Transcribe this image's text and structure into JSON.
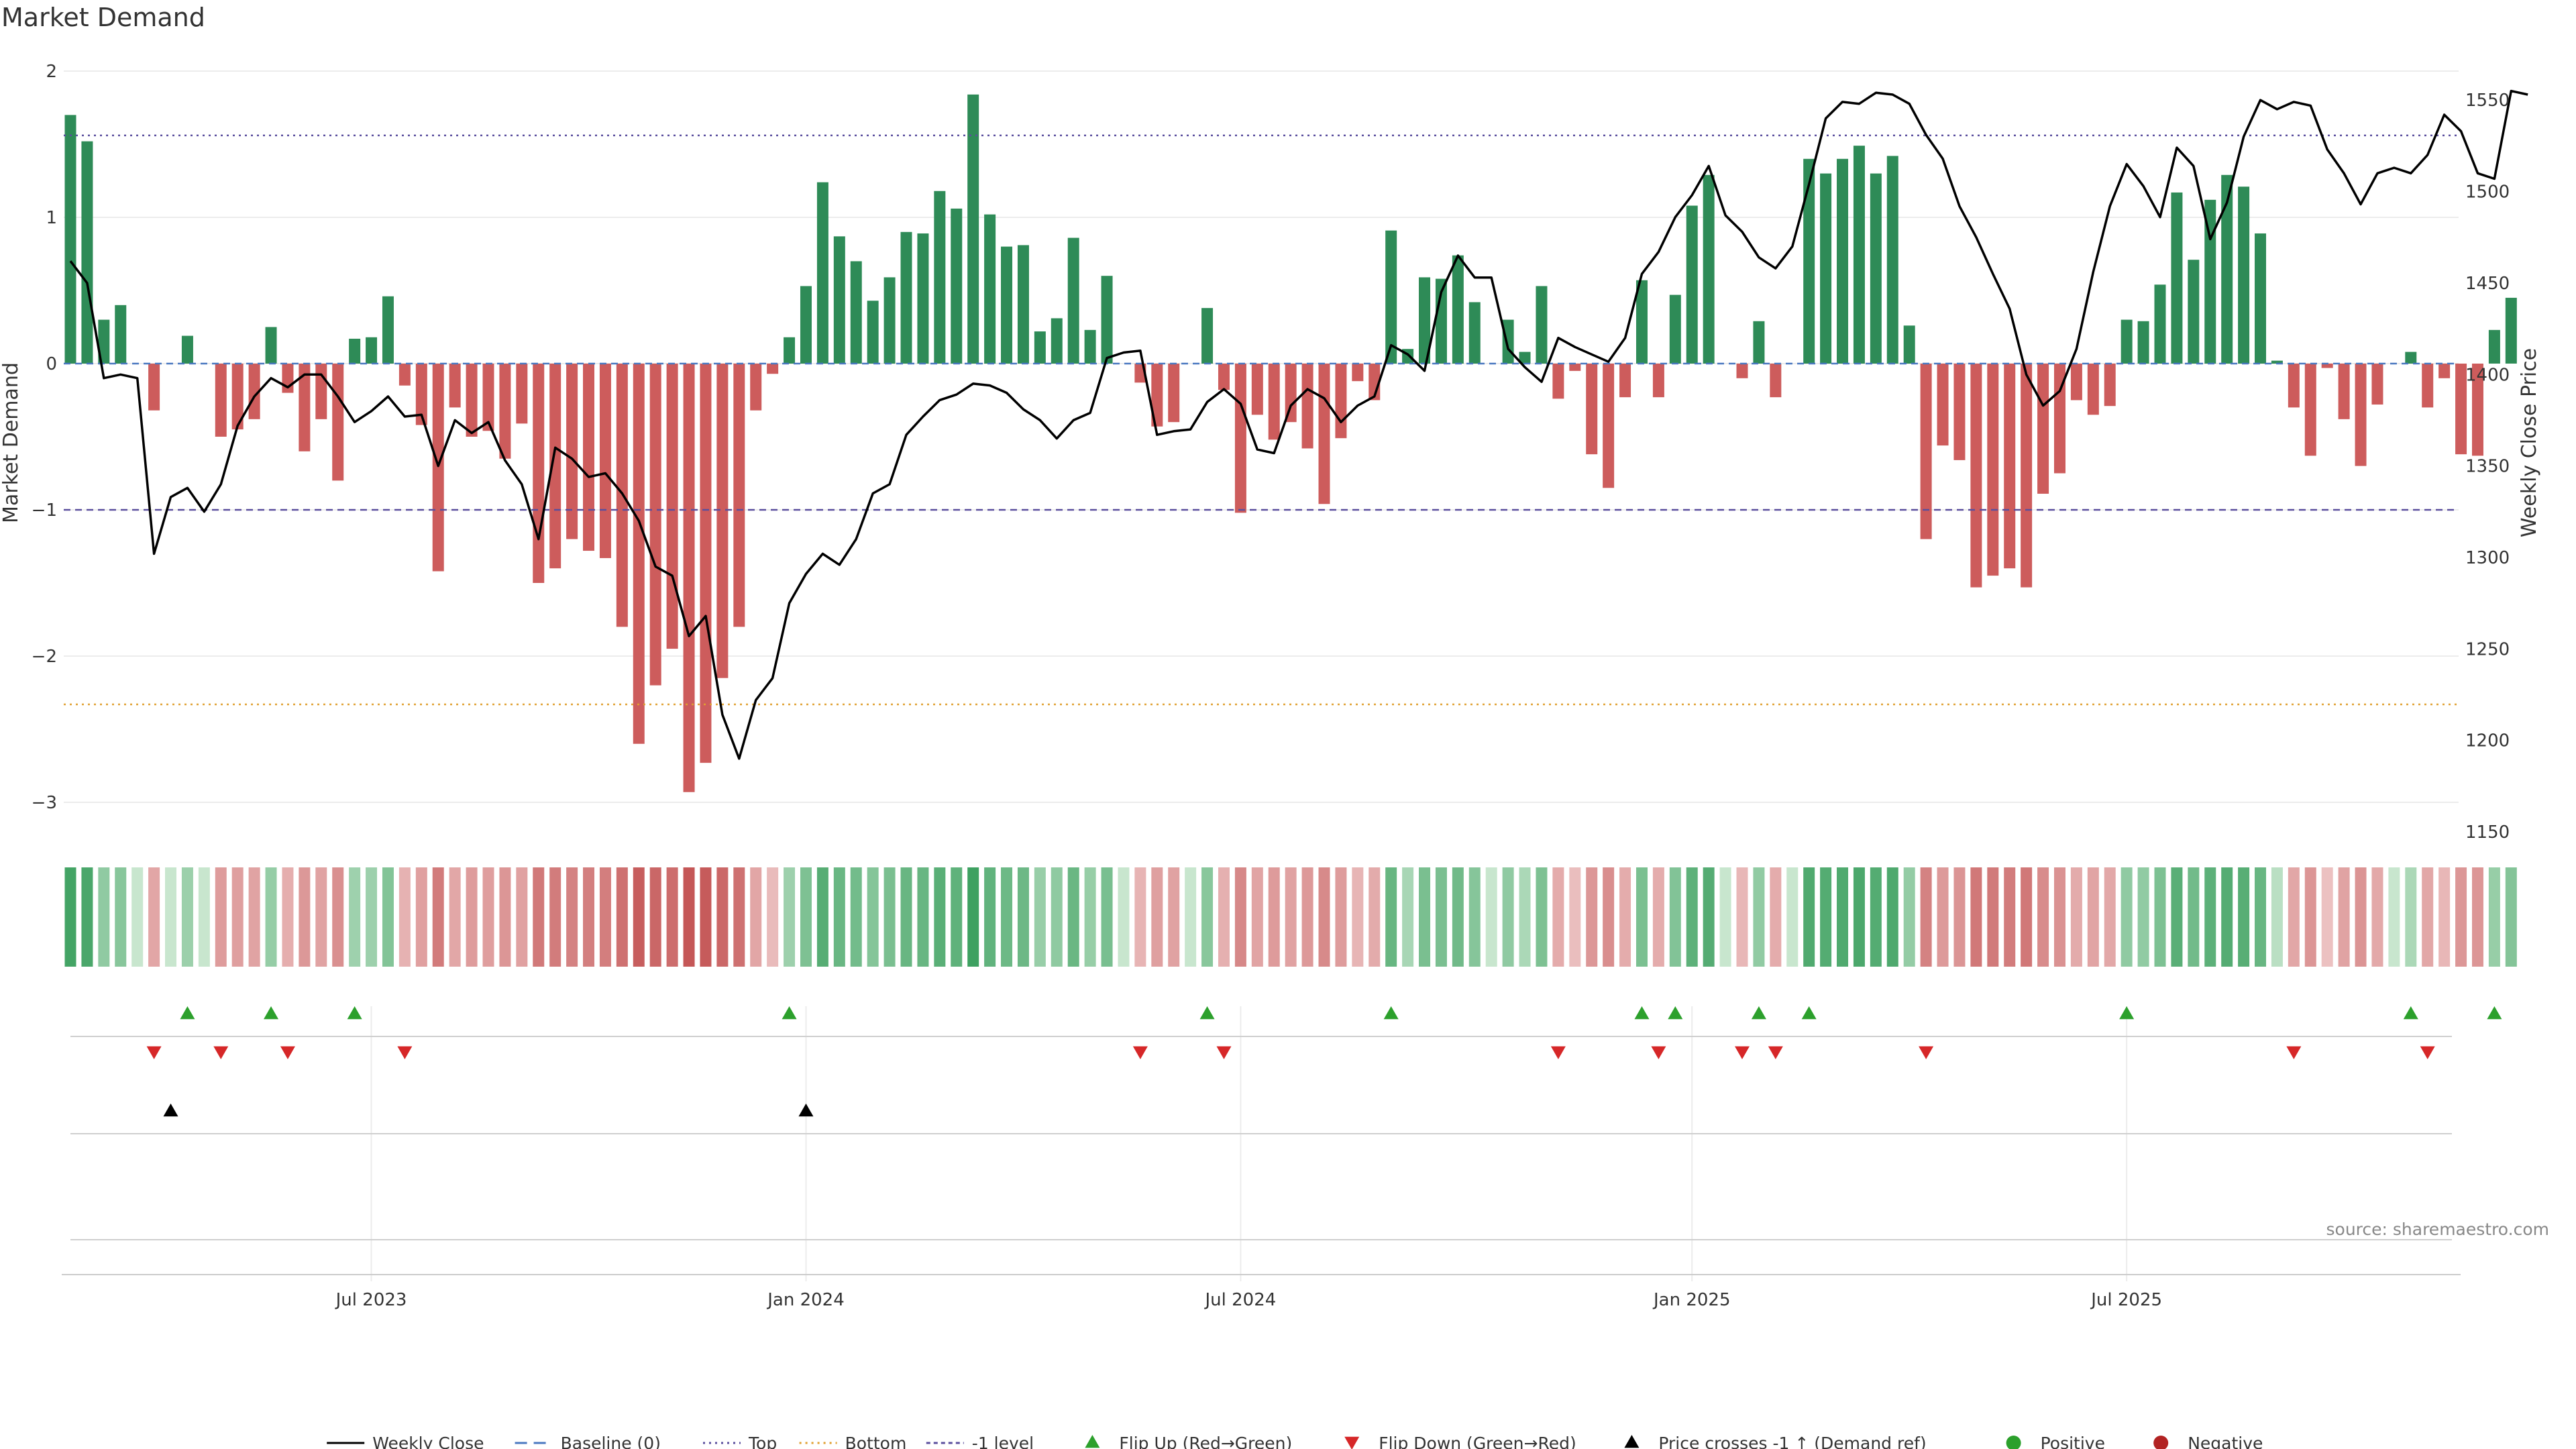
{
  "source_note": "source: sharemaestro.com",
  "chart_data": {
    "type": "bar",
    "title": "Market Demand",
    "ylabel_left": "Market Demand",
    "ylabel_right": "Weekly Close Price",
    "ylim_left": [
      -3.0,
      2.0
    ],
    "left_ticks": [
      2,
      1,
      0,
      -1,
      -2,
      -3
    ],
    "left_tick_labels": [
      "2",
      "1",
      "0",
      "−1",
      "−2",
      "−3"
    ],
    "ylim_right": [
      1150,
      1560
    ],
    "right_ticks": [
      1550,
      1500,
      1450,
      1400,
      1350,
      1300,
      1250,
      1200,
      1150
    ],
    "start_date": "2023-02-27",
    "x_tick_dates": [
      "2023-07-03",
      "2024-01-01",
      "2024-07-01",
      "2025-01-06",
      "2025-07-07"
    ],
    "x_tick_labels": [
      "Jul 2023",
      "Jan 2024",
      "Jul 2024",
      "Jan 2025",
      "Jul 2025"
    ],
    "reference_lines": [
      {
        "name": "Top",
        "value": 1.56,
        "color": "#5b4f9e",
        "style": "dotted"
      },
      {
        "name": "Bottom",
        "value": -2.33,
        "color": "#e0a030",
        "style": "dotted"
      },
      {
        "name": "-1 level",
        "value": -1.0,
        "color": "#5b4f9e",
        "style": "dashed"
      },
      {
        "name": "Baseline (0)",
        "value": 0.0,
        "color": "#4a78c0",
        "style": "dashed"
      }
    ],
    "colors": {
      "positive": "#2e8b57",
      "negative": "#cd5c5c",
      "close": "#000000",
      "flip_up": "#2ca02c",
      "flip_down": "#d62728",
      "cross": "#000000"
    },
    "demand": [
      1.7,
      1.52,
      0.3,
      0.4,
      0.0,
      -0.32,
      0.0,
      0.19,
      0.0,
      -0.5,
      -0.45,
      -0.38,
      0.25,
      -0.2,
      -0.6,
      -0.38,
      -0.8,
      0.17,
      0.18,
      0.46,
      -0.15,
      -0.42,
      -1.42,
      -0.3,
      -0.5,
      -0.46,
      -0.65,
      -0.41,
      -1.5,
      -1.4,
      -1.2,
      -1.28,
      -1.33,
      -1.8,
      -2.6,
      -2.2,
      -1.95,
      -2.93,
      -2.73,
      -2.15,
      -1.8,
      -0.32,
      -0.07,
      0.18,
      0.53,
      1.24,
      0.87,
      0.7,
      0.43,
      0.59,
      0.9,
      0.89,
      1.18,
      1.06,
      1.84,
      1.02,
      0.8,
      0.81,
      0.22,
      0.31,
      0.86,
      0.23,
      0.6,
      0.0,
      -0.13,
      -0.43,
      -0.4,
      0.0,
      0.38,
      -0.18,
      -1.02,
      -0.35,
      -0.52,
      -0.4,
      -0.58,
      -0.96,
      -0.51,
      -0.12,
      -0.25,
      0.91,
      0.1,
      0.59,
      0.58,
      0.74,
      0.42,
      0.0,
      0.3,
      0.08,
      0.53,
      -0.24,
      -0.05,
      -0.62,
      -0.85,
      -0.23,
      0.57,
      -0.23,
      0.47,
      1.08,
      1.29,
      0.0,
      -0.1,
      0.29,
      -0.23,
      0.0,
      1.4,
      1.3,
      1.4,
      1.49,
      1.3,
      1.42,
      0.26,
      -1.2,
      -0.56,
      -0.66,
      -1.53,
      -1.45,
      -1.4,
      -1.53,
      -0.89,
      -0.75,
      -0.25,
      -0.35,
      -0.29,
      0.3,
      0.29,
      0.54,
      1.17,
      0.71,
      1.12,
      1.29,
      1.21,
      0.89,
      0.02,
      -0.3,
      -0.63,
      -0.03,
      -0.38,
      -0.7,
      -0.28,
      0.0,
      0.08,
      -0.3,
      -0.1,
      -0.62,
      -0.63,
      0.23,
      0.45
    ],
    "weekly_close": [
      1462,
      1450,
      1398,
      1400,
      1398,
      1302,
      1333,
      1338,
      1325,
      1340,
      1372,
      1388,
      1398,
      1393,
      1400,
      1400,
      1388,
      1374,
      1380,
      1388,
      1377,
      1378,
      1350,
      1375,
      1368,
      1374,
      1353,
      1340,
      1310,
      1360,
      1354,
      1344,
      1346,
      1335,
      1320,
      1295,
      1290,
      1257,
      1268,
      1214,
      1190,
      1222,
      1234,
      1275,
      1291,
      1302,
      1296,
      1310,
      1335,
      1340,
      1367,
      1377,
      1386,
      1389,
      1395,
      1394,
      1390,
      1381,
      1375,
      1365,
      1375,
      1379,
      1409,
      1412,
      1413,
      1367,
      1369,
      1370,
      1385,
      1392,
      1384,
      1359,
      1357,
      1383,
      1392,
      1387,
      1374,
      1383,
      1388,
      1416,
      1411,
      1402,
      1445,
      1465,
      1453,
      1453,
      1414,
      1404,
      1396,
      1420,
      1415,
      1411,
      1407,
      1420,
      1455,
      1467,
      1486,
      1498,
      1514,
      1487,
      1478,
      1464,
      1458,
      1470,
      1504,
      1540,
      1549,
      1548,
      1554,
      1553,
      1548,
      1531,
      1518,
      1492,
      1475,
      1455,
      1436,
      1400,
      1383,
      1391,
      1414,
      1456,
      1492,
      1515,
      1503,
      1486,
      1524,
      1514,
      1474,
      1494,
      1530,
      1550,
      1545,
      1549,
      1547,
      1523,
      1510,
      1493,
      1510,
      1513,
      1510,
      1520,
      1542,
      1533,
      1510,
      1507,
      1555,
      1553
    ]
  },
  "legend": {
    "items": [
      {
        "label": "Weekly Close",
        "kind": "line",
        "color": "#000000",
        "dash": ""
      },
      {
        "label": "Baseline (0)",
        "kind": "line",
        "color": "#4a78c0",
        "dash": "18,10"
      },
      {
        "label": "Top",
        "kind": "line",
        "color": "#5b4f9e",
        "dash": "3,6"
      },
      {
        "label": "Bottom",
        "kind": "line",
        "color": "#e0a030",
        "dash": "3,6"
      },
      {
        "label": "-1 level",
        "kind": "line",
        "color": "#5b4f9e",
        "dash": "6,5"
      },
      {
        "label": "Flip Up (Red→Green)",
        "kind": "tri-up",
        "color": "#2ca02c"
      },
      {
        "label": "Flip Down (Green→Red)",
        "kind": "tri-down",
        "color": "#d62728"
      },
      {
        "label": "Price crosses -1 ↑ (Demand ref)",
        "kind": "tri-up",
        "color": "#000000"
      },
      {
        "label": "Positive",
        "kind": "dot",
        "color": "#2ca02c"
      },
      {
        "label": "Negative",
        "kind": "dot",
        "color": "#b22222"
      }
    ]
  }
}
